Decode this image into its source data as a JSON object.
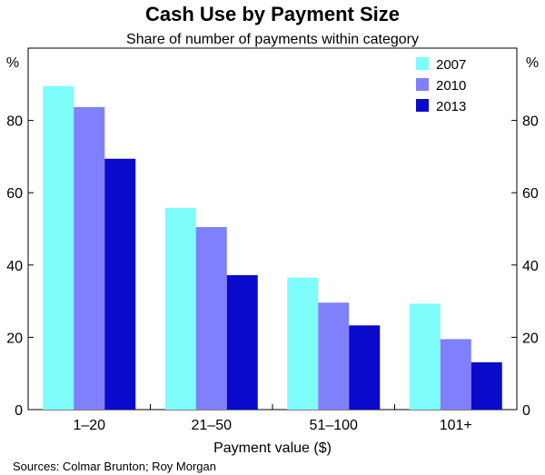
{
  "chart_data": {
    "type": "bar",
    "title": "Cash Use by Payment Size",
    "subtitle": "Share of number of payments within category",
    "xlabel": "Payment value ($)",
    "ylabel_left": "%",
    "ylabel_right": "%",
    "ylim": [
      0,
      100
    ],
    "yticks": [
      0,
      20,
      40,
      60,
      80
    ],
    "categories": [
      "1–20",
      "21–50",
      "51–100",
      "101+"
    ],
    "series": [
      {
        "name": "2007",
        "color": "#7ffcfc",
        "values": [
          89.5,
          55.8,
          36.5,
          29.3
        ]
      },
      {
        "name": "2010",
        "color": "#8080fc",
        "values": [
          83.7,
          50.5,
          29.6,
          19.5
        ]
      },
      {
        "name": "2013",
        "color": "#0a0acc",
        "values": [
          69.4,
          37.2,
          23.3,
          13.1
        ]
      }
    ],
    "legend_position": "top-right",
    "grid": false,
    "source": "Sources: Colmar Brunton; Roy Morgan"
  }
}
